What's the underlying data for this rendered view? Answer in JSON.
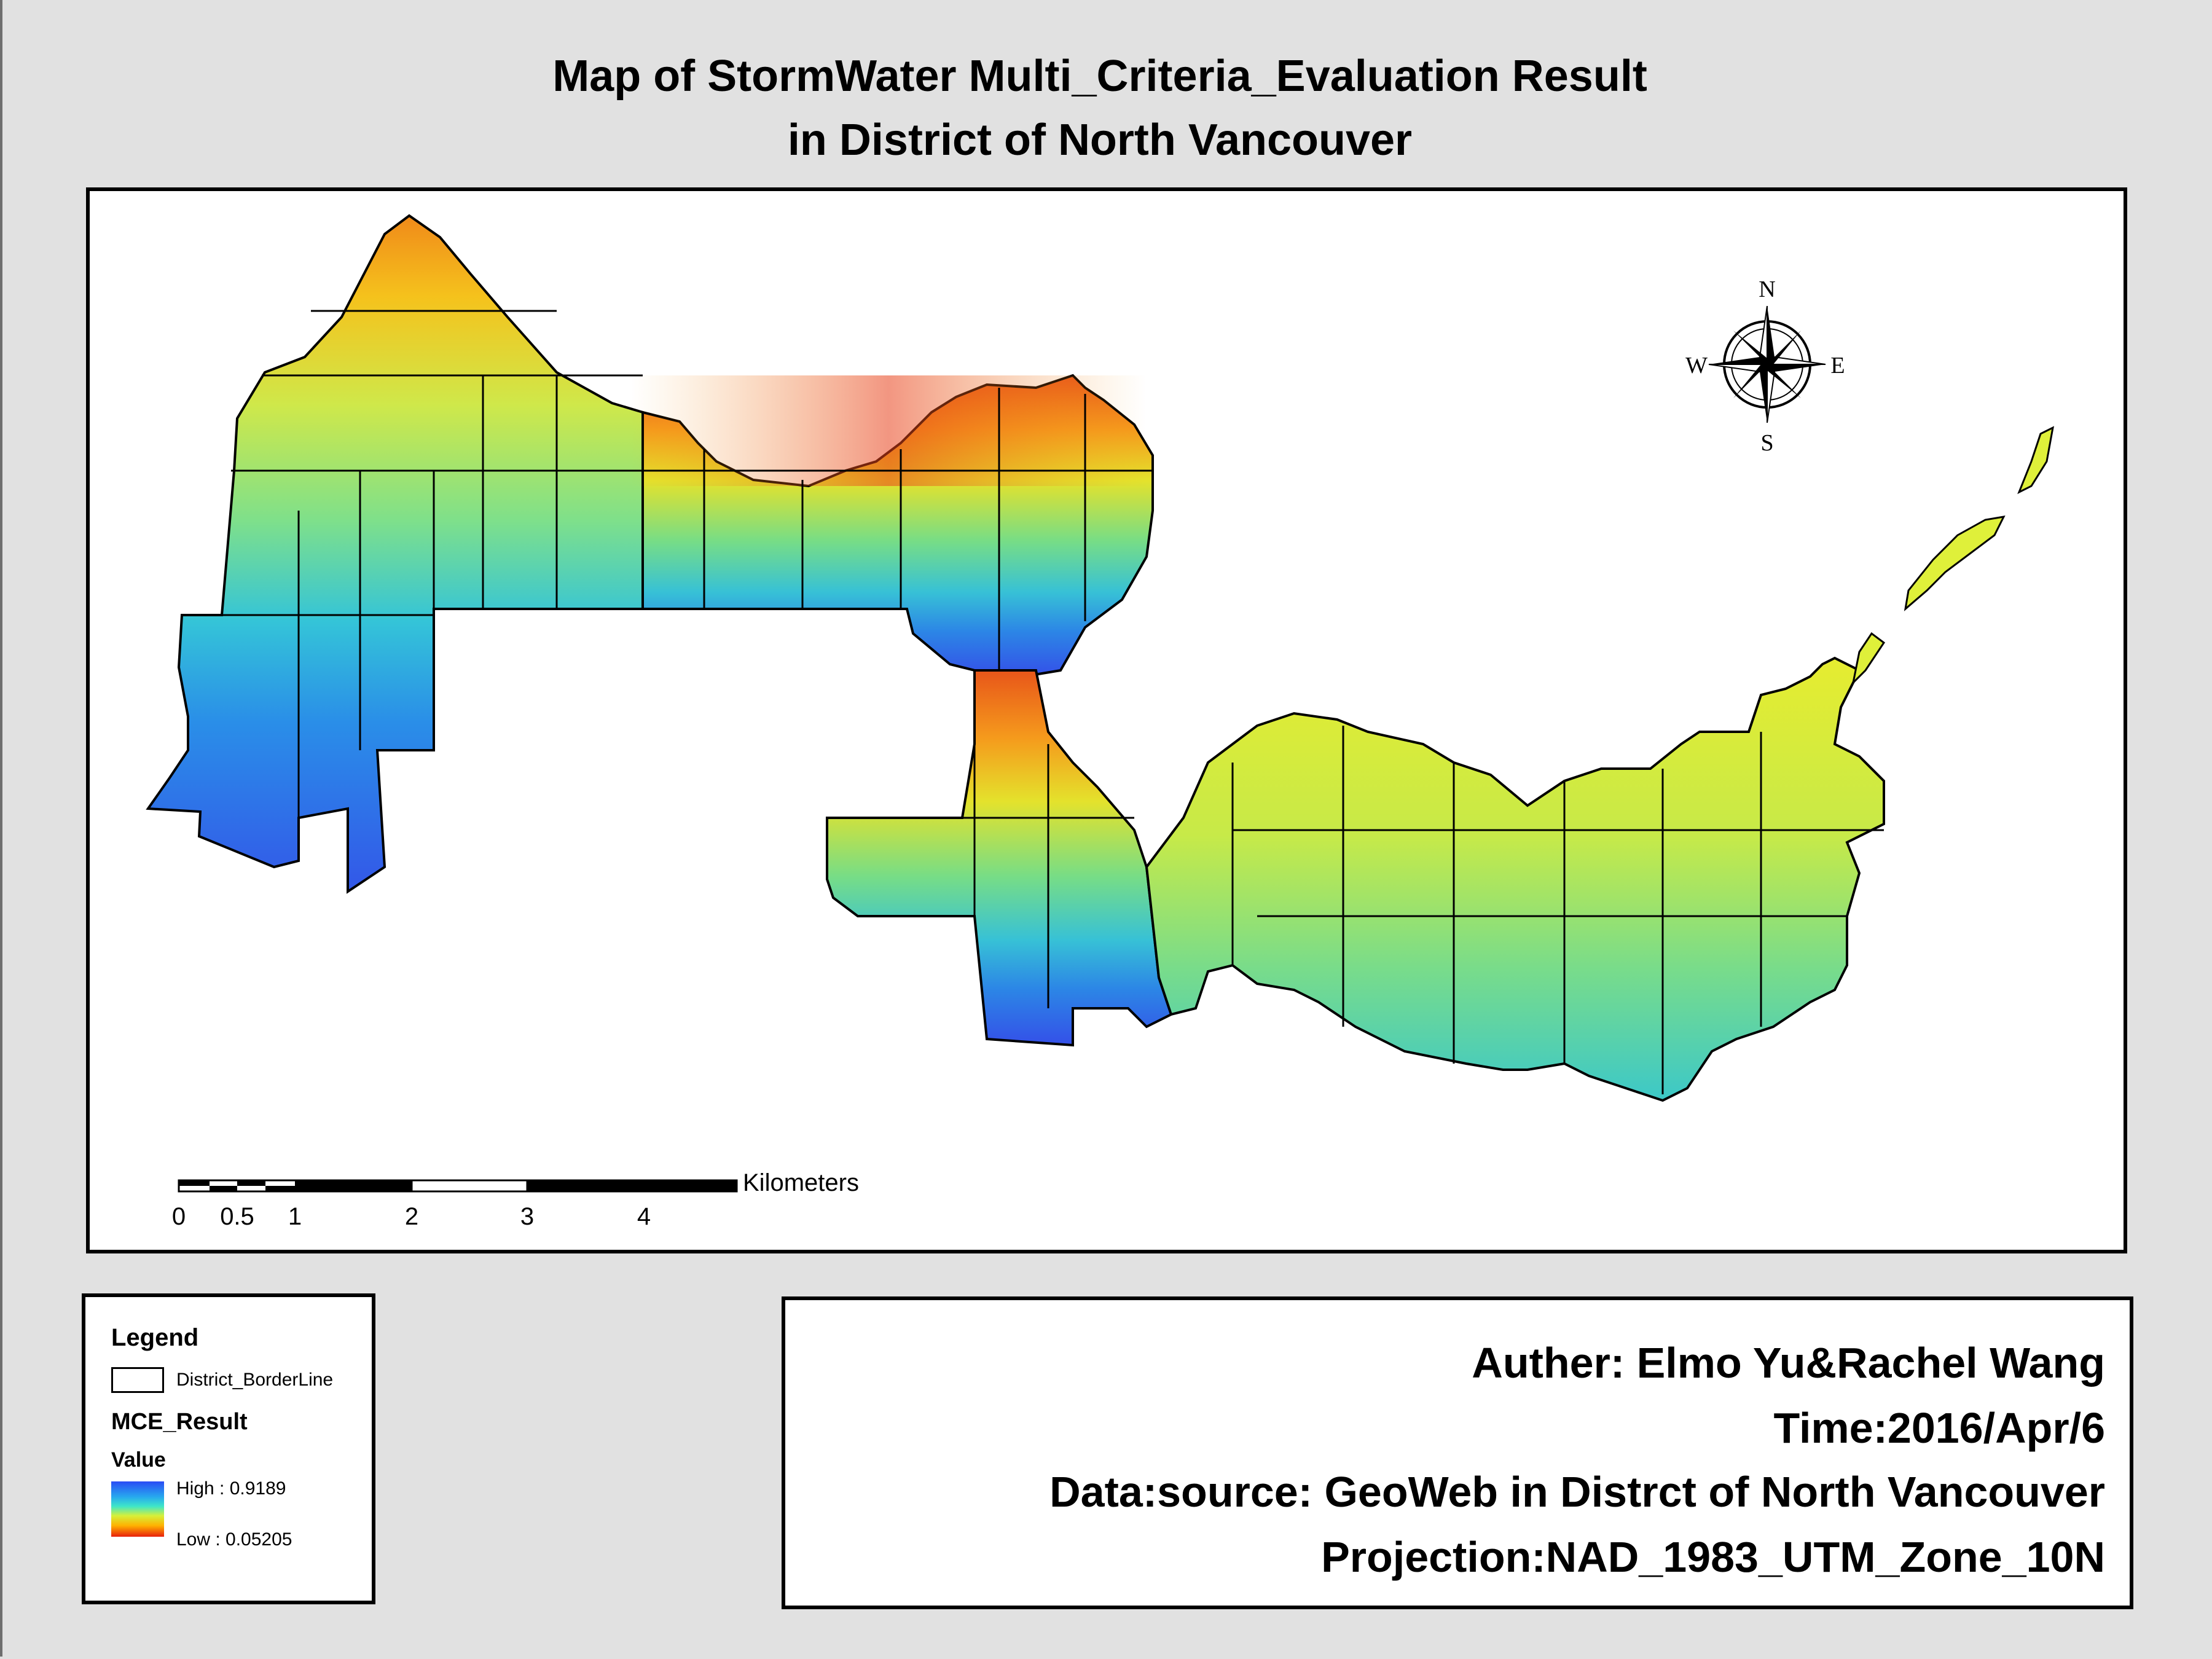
{
  "title": {
    "line1": "Map of StormWater Multi_Criteria_Evaluation Result",
    "line2": "in District of North Vancouver"
  },
  "north_arrow": {
    "n": "N",
    "s": "S",
    "e": "E",
    "w": "W"
  },
  "scale_bar": {
    "unit": "Kilometers",
    "ticks": [
      "0",
      "0.5",
      "1",
      "2",
      "3",
      "4"
    ]
  },
  "legend": {
    "title": "Legend",
    "border_layer": "District_BorderLine",
    "raster_layer": "MCE_Result",
    "value_label": "Value",
    "high": "High : 0.9189",
    "low": "Low : 0.05205",
    "ramp_colors": [
      "#2b4cf5",
      "#27a9ee",
      "#3ee6c8",
      "#d6f03a",
      "#ffb100",
      "#e8200c"
    ]
  },
  "info": {
    "author": "Auther: Elmo Yu&Rachel Wang",
    "time": "Time:2016/Apr/6",
    "source": "Data:source: GeoWeb in Distrct of North Vancouver",
    "projection": "Projection:NAD_1983_UTM_Zone_10N"
  }
}
